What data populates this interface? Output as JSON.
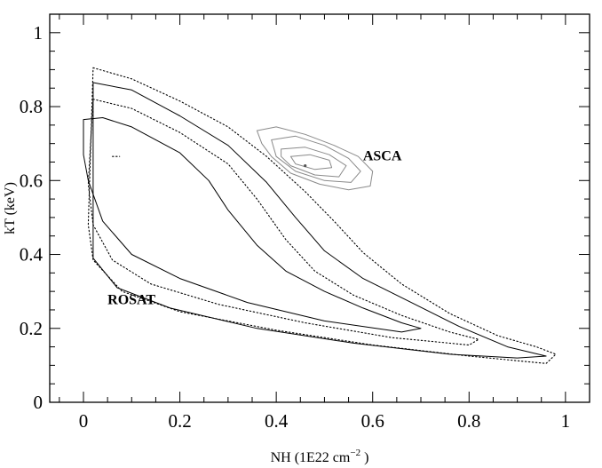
{
  "chart_data": {
    "type": "line",
    "title": "",
    "xlabel": {
      "main": "NH (1E22 cm",
      "sup": "−2",
      "tail": " )"
    },
    "ylabel": "kT (keV)",
    "xlim": [
      -0.07,
      1.05
    ],
    "ylim": [
      0,
      1.05
    ],
    "xticks": [
      0,
      0.2,
      0.4,
      0.6,
      0.8,
      1
    ],
    "xtick_labels": [
      "0",
      "0.2",
      "0.4",
      "0.6",
      "0.8",
      "1"
    ],
    "yticks": [
      0,
      0.2,
      0.4,
      0.6,
      0.8,
      1
    ],
    "ytick_labels": [
      "0",
      "0.2",
      "0.4",
      "0.6",
      "0.8",
      "1"
    ],
    "grid": false,
    "annotations": [
      {
        "text": "ASCA",
        "x": 0.58,
        "y": 0.655
      },
      {
        "text": "ROSAT",
        "x": 0.05,
        "y": 0.265
      }
    ],
    "contours": [
      {
        "group": "ROSAT",
        "style": "dotted",
        "points": [
          [
            0.02,
            0.905
          ],
          [
            0.1,
            0.875
          ],
          [
            0.2,
            0.815
          ],
          [
            0.3,
            0.745
          ],
          [
            0.38,
            0.665
          ],
          [
            0.46,
            0.57
          ],
          [
            0.52,
            0.49
          ],
          [
            0.58,
            0.405
          ],
          [
            0.66,
            0.32
          ],
          [
            0.76,
            0.24
          ],
          [
            0.86,
            0.18
          ],
          [
            0.94,
            0.15
          ],
          [
            0.98,
            0.13
          ],
          [
            0.96,
            0.105
          ],
          [
            0.8,
            0.125
          ],
          [
            0.6,
            0.155
          ],
          [
            0.4,
            0.195
          ],
          [
            0.2,
            0.245
          ],
          [
            0.08,
            0.3
          ],
          [
            0.02,
            0.385
          ],
          [
            0.01,
            0.48
          ]
        ]
      },
      {
        "group": "ROSAT",
        "style": "solid",
        "points": [
          [
            0.02,
            0.865
          ],
          [
            0.1,
            0.845
          ],
          [
            0.2,
            0.775
          ],
          [
            0.3,
            0.695
          ],
          [
            0.38,
            0.595
          ],
          [
            0.44,
            0.5
          ],
          [
            0.5,
            0.41
          ],
          [
            0.58,
            0.335
          ],
          [
            0.68,
            0.27
          ],
          [
            0.78,
            0.205
          ],
          [
            0.88,
            0.15
          ],
          [
            0.96,
            0.125
          ],
          [
            0.9,
            0.12
          ],
          [
            0.76,
            0.13
          ],
          [
            0.56,
            0.16
          ],
          [
            0.36,
            0.2
          ],
          [
            0.18,
            0.255
          ],
          [
            0.07,
            0.31
          ],
          [
            0.02,
            0.39
          ],
          [
            0.02,
            0.53
          ]
        ]
      },
      {
        "group": "ROSAT",
        "style": "dotted",
        "points": [
          [
            0.02,
            0.82
          ],
          [
            0.1,
            0.795
          ],
          [
            0.2,
            0.73
          ],
          [
            0.3,
            0.645
          ],
          [
            0.36,
            0.55
          ],
          [
            0.42,
            0.44
          ],
          [
            0.48,
            0.355
          ],
          [
            0.56,
            0.29
          ],
          [
            0.66,
            0.235
          ],
          [
            0.76,
            0.19
          ],
          [
            0.82,
            0.17
          ],
          [
            0.8,
            0.155
          ],
          [
            0.64,
            0.175
          ],
          [
            0.46,
            0.215
          ],
          [
            0.28,
            0.265
          ],
          [
            0.14,
            0.32
          ],
          [
            0.06,
            0.385
          ],
          [
            0.02,
            0.48
          ],
          [
            0.01,
            0.59
          ]
        ]
      },
      {
        "group": "ROSAT",
        "style": "solid",
        "points": [
          [
            0.0,
            0.765
          ],
          [
            0.04,
            0.77
          ],
          [
            0.1,
            0.745
          ],
          [
            0.2,
            0.675
          ],
          [
            0.26,
            0.6
          ],
          [
            0.3,
            0.52
          ],
          [
            0.36,
            0.425
          ],
          [
            0.42,
            0.355
          ],
          [
            0.5,
            0.3
          ],
          [
            0.58,
            0.255
          ],
          [
            0.66,
            0.215
          ],
          [
            0.7,
            0.2
          ],
          [
            0.66,
            0.19
          ],
          [
            0.5,
            0.22
          ],
          [
            0.34,
            0.27
          ],
          [
            0.2,
            0.335
          ],
          [
            0.1,
            0.4
          ],
          [
            0.04,
            0.49
          ],
          [
            0.01,
            0.6
          ],
          [
            0.0,
            0.67
          ]
        ]
      },
      {
        "group": "ROSAT",
        "style": "dotted",
        "points": [
          [
            0.06,
            0.665
          ],
          [
            0.075,
            0.665
          ]
        ]
      },
      {
        "group": "ASCA",
        "style": "solid",
        "color": "#8a8a8a",
        "points": [
          [
            0.36,
            0.735
          ],
          [
            0.4,
            0.745
          ],
          [
            0.46,
            0.725
          ],
          [
            0.52,
            0.695
          ],
          [
            0.57,
            0.665
          ],
          [
            0.6,
            0.625
          ],
          [
            0.595,
            0.585
          ],
          [
            0.55,
            0.575
          ],
          [
            0.49,
            0.59
          ],
          [
            0.43,
            0.62
          ],
          [
            0.39,
            0.665
          ],
          [
            0.37,
            0.7
          ]
        ]
      },
      {
        "group": "ASCA",
        "style": "solid",
        "color": "#8a8a8a",
        "points": [
          [
            0.39,
            0.71
          ],
          [
            0.44,
            0.72
          ],
          [
            0.5,
            0.695
          ],
          [
            0.55,
            0.66
          ],
          [
            0.575,
            0.625
          ],
          [
            0.555,
            0.595
          ],
          [
            0.5,
            0.6
          ],
          [
            0.44,
            0.625
          ],
          [
            0.4,
            0.665
          ]
        ]
      },
      {
        "group": "ASCA",
        "style": "solid",
        "color": "#8a8a8a",
        "points": [
          [
            0.41,
            0.685
          ],
          [
            0.46,
            0.69
          ],
          [
            0.51,
            0.67
          ],
          [
            0.545,
            0.64
          ],
          [
            0.53,
            0.61
          ],
          [
            0.48,
            0.615
          ],
          [
            0.43,
            0.64
          ],
          [
            0.41,
            0.665
          ]
        ]
      },
      {
        "group": "ASCA",
        "style": "solid",
        "color": "#8a8a8a",
        "points": [
          [
            0.43,
            0.665
          ],
          [
            0.47,
            0.67
          ],
          [
            0.51,
            0.655
          ],
          [
            0.515,
            0.635
          ],
          [
            0.48,
            0.63
          ],
          [
            0.44,
            0.645
          ]
        ]
      }
    ],
    "best_fit_marker": {
      "x": 0.46,
      "y": 0.64
    }
  }
}
